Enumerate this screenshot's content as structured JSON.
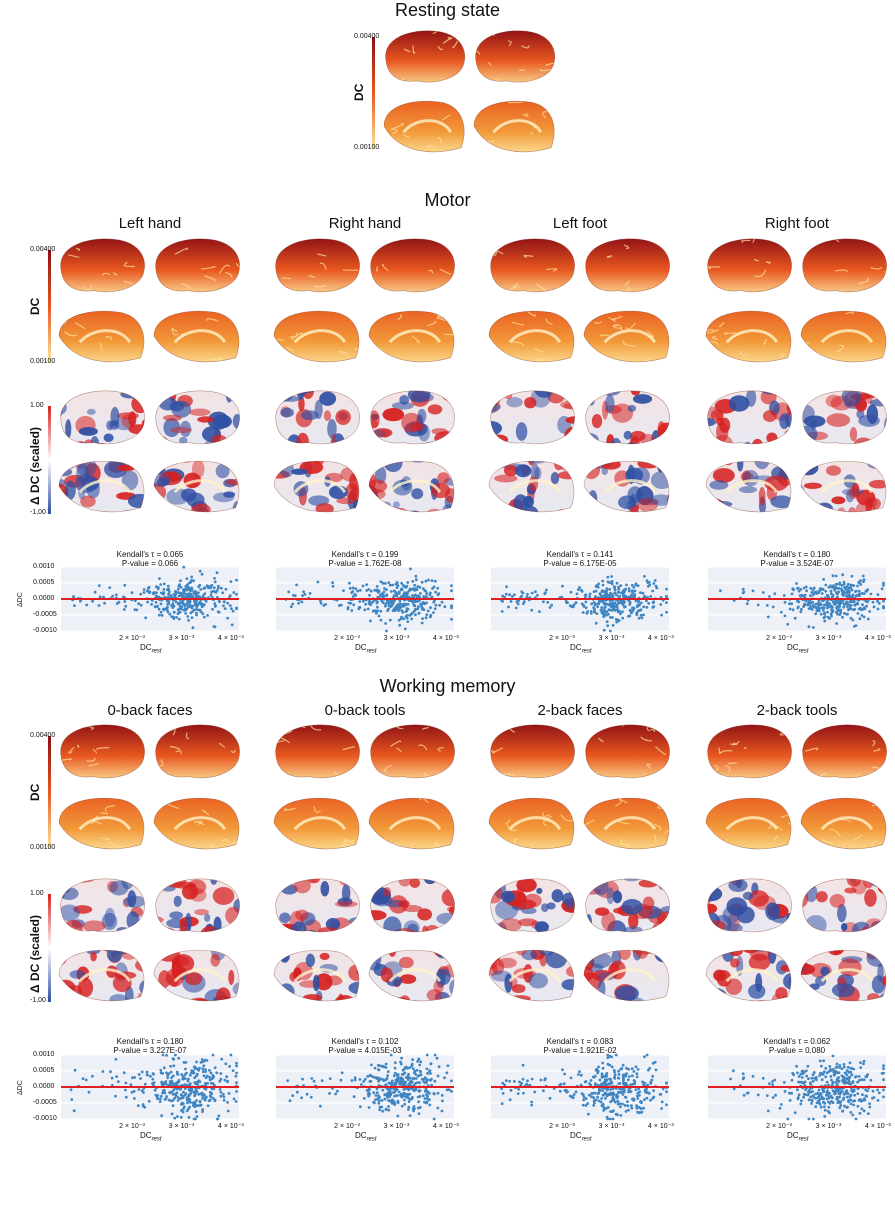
{
  "titles": {
    "resting": "Resting state",
    "motor": "Motor",
    "wm": "Working memory"
  },
  "colorbars": {
    "dc_label": "DC",
    "dc_max": "0.00400",
    "dc_min": "0.00100",
    "delta_label": "Δ DC (scaled)",
    "delta_max": "1.00",
    "delta_min": "-1.00"
  },
  "colors": {
    "dc_low": "#fde7a0",
    "dc_mid": "#e8581f",
    "dc_high": "#8b0e16",
    "delta_pos": "#d62020",
    "delta_neg": "#2f4fa3",
    "scatter_point": "#3f86c2",
    "zero_line": "#e02020",
    "plot_bg": "#eef0f7"
  },
  "scatter_axes": {
    "ylabel": "ΔDC",
    "xlabel": "DC",
    "xlabel_sub": "rest",
    "yticks": [
      "0.0010",
      "0.0005",
      "0.0000",
      "-0.0005",
      "-0.0010"
    ],
    "xticks": [
      "2 × 10⁻³",
      "3 × 10⁻³",
      "4 × 10⁻³"
    ]
  },
  "motor": {
    "columns": [
      {
        "title": "Left hand",
        "tau": "Kendall's τ = 0.065",
        "p": "P-value = 0.066"
      },
      {
        "title": "Right hand",
        "tau": "Kendall's τ = 0.199",
        "p": "P-value = 1.762E-08"
      },
      {
        "title": "Left foot",
        "tau": "Kendall's τ = 0.141",
        "p": "P-value = 6.175E-05"
      },
      {
        "title": "Right foot",
        "tau": "Kendall's τ = 0.180",
        "p": "P-value = 3.524E-07"
      }
    ]
  },
  "wm": {
    "columns": [
      {
        "title": "0-back faces",
        "tau": "Kendall's τ = 0.180",
        "p": "P-value = 3.227E-07"
      },
      {
        "title": "0-back tools",
        "tau": "Kendall's τ = 0.102",
        "p": "P-value = 4.015E-03"
      },
      {
        "title": "2-back faces",
        "tau": "Kendall's τ = 0.083",
        "p": "P-value = 1.921E-02"
      },
      {
        "title": "2-back tools",
        "tau": "Kendall's τ = 0.062",
        "p": "P-value = 0.080"
      }
    ]
  },
  "chart_data": [
    {
      "type": "scatter",
      "title": "Left hand",
      "xlabel": "DC_rest",
      "ylabel": "ΔDC",
      "xlim": [
        0.0005,
        0.0041
      ],
      "ylim": [
        -0.001,
        0.001
      ],
      "grid": true,
      "n_points": 360,
      "spread": 0.0003
    },
    {
      "type": "scatter",
      "title": "Right hand",
      "xlabel": "DC_rest",
      "ylabel": "ΔDC",
      "xlim": [
        0.0005,
        0.0041
      ],
      "ylim": [
        -0.001,
        0.001
      ],
      "grid": true,
      "n_points": 360,
      "spread": 0.0003
    },
    {
      "type": "scatter",
      "title": "Left foot",
      "xlabel": "DC_rest",
      "ylabel": "ΔDC",
      "xlim": [
        0.0005,
        0.0041
      ],
      "ylim": [
        -0.001,
        0.001
      ],
      "grid": true,
      "n_points": 360,
      "spread": 0.0003
    },
    {
      "type": "scatter",
      "title": "Right foot",
      "xlabel": "DC_rest",
      "ylabel": "ΔDC",
      "xlim": [
        0.0005,
        0.0041
      ],
      "ylim": [
        -0.001,
        0.001
      ],
      "grid": true,
      "n_points": 360,
      "spread": 0.0003
    },
    {
      "type": "scatter",
      "title": "0-back faces",
      "xlabel": "DC_rest",
      "ylabel": "ΔDC",
      "xlim": [
        0.0005,
        0.0041
      ],
      "ylim": [
        -0.001,
        0.001
      ],
      "grid": true,
      "n_points": 360,
      "spread": 0.0004
    },
    {
      "type": "scatter",
      "title": "0-back tools",
      "xlabel": "DC_rest",
      "ylabel": "ΔDC",
      "xlim": [
        0.0005,
        0.0041
      ],
      "ylim": [
        -0.001,
        0.001
      ],
      "grid": true,
      "n_points": 360,
      "spread": 0.0004
    },
    {
      "type": "scatter",
      "title": "2-back faces",
      "xlabel": "DC_rest",
      "ylabel": "ΔDC",
      "xlim": [
        0.0005,
        0.0041
      ],
      "ylim": [
        -0.001,
        0.001
      ],
      "grid": true,
      "n_points": 360,
      "spread": 0.0004
    },
    {
      "type": "scatter",
      "title": "2-back tools",
      "xlabel": "DC_rest",
      "ylabel": "ΔDC",
      "xlim": [
        0.0005,
        0.0041
      ],
      "ylim": [
        -0.001,
        0.001
      ],
      "grid": true,
      "n_points": 360,
      "spread": 0.0004
    }
  ]
}
